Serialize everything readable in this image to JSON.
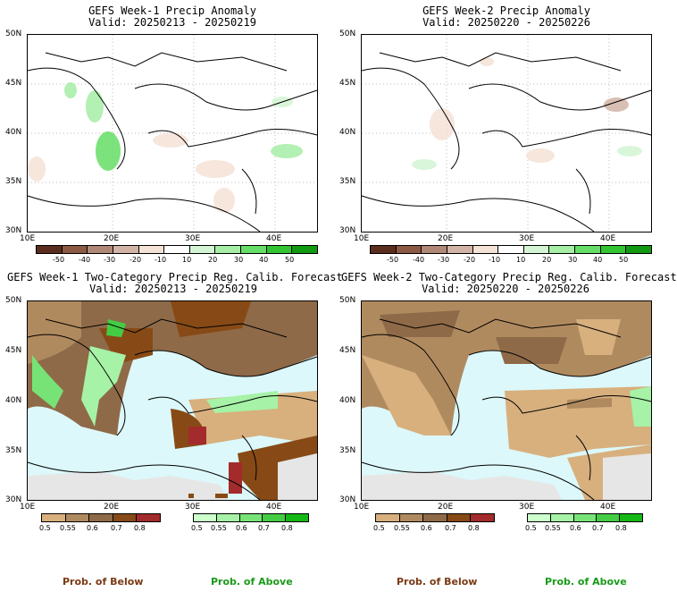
{
  "chart_data": [
    {
      "type": "heatmap",
      "title": "GEFS Week-1 Precip Anomaly",
      "subtitle": "Valid: 20250213 - 20250219",
      "xticks": [
        "10E",
        "20E",
        "30E",
        "40E"
      ],
      "yticks": [
        "50N",
        "45N",
        "40N",
        "35N",
        "30N"
      ],
      "xlim": [
        10,
        44
      ],
      "ylim": [
        30,
        50
      ],
      "colorbar": {
        "labels": [
          "-50",
          "-40",
          "-30",
          "-20",
          "-10",
          "10",
          "20",
          "30",
          "40",
          "50"
        ],
        "colors": [
          "#5a2d1e",
          "#8a5a44",
          "#b08878",
          "#d2b4a6",
          "#f5e2d6",
          "#ffffff",
          "#d4f5d4",
          "#a6eea6",
          "#66dd66",
          "#33c433",
          "#129912"
        ]
      }
    },
    {
      "type": "heatmap",
      "title": "GEFS Week-2 Precip Anomaly",
      "subtitle": "Valid: 20250220 - 20250226",
      "xticks": [
        "10E",
        "20E",
        "30E",
        "40E"
      ],
      "yticks": [
        "50N",
        "45N",
        "40N",
        "35N",
        "30N"
      ],
      "xlim": [
        10,
        44
      ],
      "ylim": [
        30,
        50
      ],
      "colorbar": {
        "labels": [
          "-50",
          "-40",
          "-30",
          "-20",
          "-10",
          "10",
          "20",
          "30",
          "40",
          "50"
        ],
        "colors": [
          "#5a2d1e",
          "#8a5a44",
          "#b08878",
          "#d2b4a6",
          "#f5e2d6",
          "#ffffff",
          "#d4f5d4",
          "#a6eea6",
          "#66dd66",
          "#33c433",
          "#129912"
        ]
      }
    },
    {
      "type": "heatmap",
      "title": "GEFS Week-1 Two-Category Precip Reg. Calib. Forecast",
      "subtitle": "Valid: 20250213 - 20250219",
      "xticks": [
        "10E",
        "20E",
        "30E",
        "40E"
      ],
      "yticks": [
        "50N",
        "45N",
        "40N",
        "35N",
        "30N"
      ],
      "xlim": [
        10,
        44
      ],
      "ylim": [
        30,
        50
      ],
      "below_colorbar": {
        "labels": [
          "0.5",
          "0.55",
          "0.6",
          "0.7",
          "0.8"
        ],
        "colors": [
          "#d8b07e",
          "#b08a5f",
          "#8f6a48",
          "#874a16",
          "#a32b2b"
        ]
      },
      "above_colorbar": {
        "labels": [
          "0.5",
          "0.55",
          "0.6",
          "0.7",
          "0.8"
        ],
        "colors": [
          "#ccffcc",
          "#a6f2a6",
          "#77e377",
          "#44cc44",
          "#14b814"
        ]
      }
    },
    {
      "type": "heatmap",
      "title": "GEFS Week-2 Two-Category Precip Reg. Calib. Forecast",
      "subtitle": "Valid: 20250220 - 20250226",
      "xticks": [
        "10E",
        "20E",
        "30E",
        "40E"
      ],
      "yticks": [
        "50N",
        "45N",
        "40N",
        "35N",
        "30N"
      ],
      "xlim": [
        10,
        44
      ],
      "ylim": [
        30,
        50
      ],
      "below_colorbar": {
        "labels": [
          "0.5",
          "0.55",
          "0.6",
          "0.7",
          "0.8"
        ],
        "colors": [
          "#d8b07e",
          "#b08a5f",
          "#8f6a48",
          "#874a16",
          "#a32b2b"
        ]
      },
      "above_colorbar": {
        "labels": [
          "0.5",
          "0.55",
          "0.6",
          "0.7",
          "0.8"
        ],
        "colors": [
          "#ccffcc",
          "#a6f2a6",
          "#77e377",
          "#44cc44",
          "#14b814"
        ]
      }
    }
  ],
  "labels": {
    "prob_below": "Prob. of Below",
    "prob_above": "Prob. of Above"
  },
  "colors": {
    "sea": "#dcf8fa",
    "land_dry": "#e6e6e6",
    "below_text": "#7a3a14",
    "above_text": "#1a9a1a"
  }
}
